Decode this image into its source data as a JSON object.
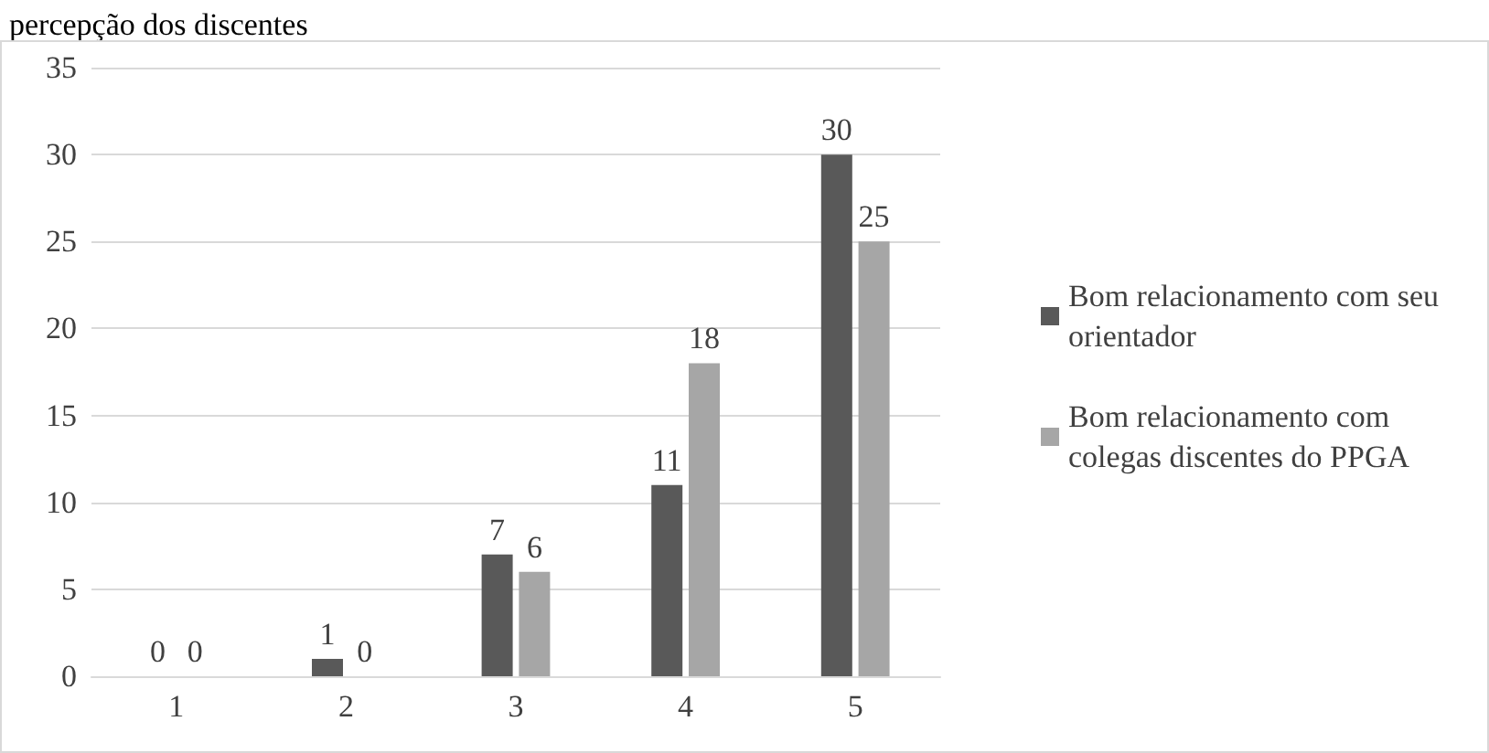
{
  "chart_data": {
    "type": "bar",
    "title": "percepção dos discentes",
    "categories": [
      "1",
      "2",
      "3",
      "4",
      "5"
    ],
    "series": [
      {
        "name": "Bom relacionamento com seu orientador",
        "color": "#595959",
        "values": [
          0,
          1,
          7,
          11,
          30
        ]
      },
      {
        "name": "Bom relacionamento com colegas discentes do PPGA",
        "color": "#a6a6a6",
        "values": [
          0,
          0,
          6,
          18,
          25
        ]
      }
    ],
    "ylim": [
      0,
      35
    ],
    "yticks": [
      0,
      5,
      10,
      15,
      20,
      25,
      30,
      35
    ],
    "grid": "y",
    "legend": "right",
    "data_labels": true
  }
}
